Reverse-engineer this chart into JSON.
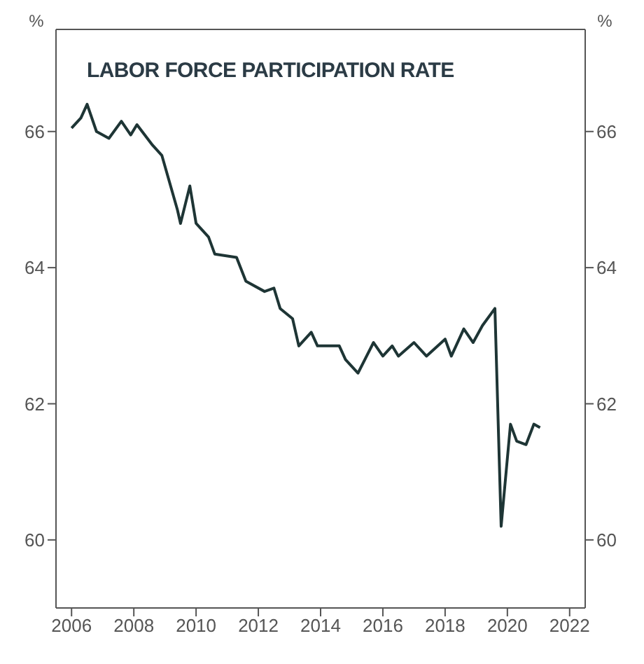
{
  "chart_data": {
    "type": "line",
    "title": "LABOR FORCE PARTICIPATION RATE",
    "ylabel": "%",
    "y2label": "%",
    "x": [
      2006.0,
      2006.3,
      2006.5,
      2006.8,
      2007.2,
      2007.6,
      2007.9,
      2008.1,
      2008.6,
      2008.9,
      2009.4,
      2009.5,
      2009.8,
      2010.0,
      2010.4,
      2010.6,
      2011.3,
      2011.6,
      2012.2,
      2012.5,
      2012.7,
      2013.1,
      2013.3,
      2013.7,
      2013.9,
      2014.6,
      2014.8,
      2015.2,
      2015.7,
      2016.0,
      2016.3,
      2016.5,
      2017.0,
      2017.4,
      2018.0,
      2018.2,
      2018.6,
      2018.9,
      2019.2,
      2019.6,
      2019.8,
      2020.1,
      2020.3,
      2020.6,
      2020.85,
      2021.05
    ],
    "series": [
      {
        "color": "#1e3535",
        "values": [
          66.05,
          66.2,
          66.4,
          66.0,
          65.9,
          66.15,
          65.95,
          66.1,
          65.8,
          65.65,
          64.85,
          64.65,
          65.2,
          64.65,
          64.45,
          64.2,
          64.15,
          63.8,
          63.65,
          63.7,
          63.4,
          63.25,
          62.85,
          63.05,
          62.85,
          62.85,
          62.65,
          62.45,
          62.9,
          62.7,
          62.85,
          62.7,
          62.9,
          62.7,
          62.95,
          62.7,
          63.1,
          62.9,
          63.15,
          63.4,
          60.2,
          61.7,
          61.45,
          61.4,
          61.7,
          61.65
        ]
      }
    ],
    "xlim": [
      2005.5,
      2022.5
    ],
    "xticks": [
      2006,
      2008,
      2010,
      2012,
      2014,
      2016,
      2018,
      2020,
      2022
    ],
    "ylim": [
      59,
      67.5
    ],
    "yticks": [
      60,
      62,
      64,
      66
    ],
    "y2lim": [
      59,
      67.5
    ],
    "y2ticks": [
      60,
      62,
      64,
      66
    ],
    "grid": false,
    "marker": "none",
    "line_style": "solid"
  }
}
